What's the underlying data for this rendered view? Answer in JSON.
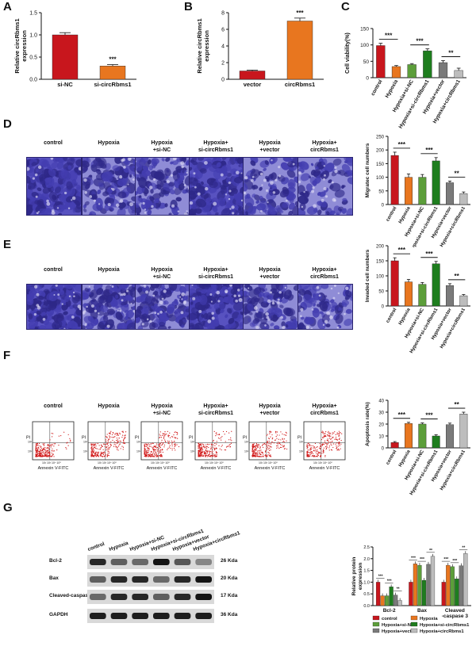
{
  "panels": {
    "A": "A",
    "B": "B",
    "C": "C",
    "D": "D",
    "E": "E",
    "F": "F",
    "G": "G"
  },
  "colors": {
    "red": "#c8161d",
    "orange": "#e8761f",
    "dgreen": "#5c9e3a",
    "green": "#1e7d1e",
    "gray": "#7a7a7a",
    "lgray": "#bdbdbd",
    "blueink": "#3e3aa8"
  },
  "group_headers": [
    "control",
    "Hypoxia",
    "Hypoxia\n+si-NC",
    "Hypoxia+\nsi-circRbms1",
    "Hypoxia\n+vector",
    "Hypoxia+\ncircRbms1"
  ],
  "flow_axes": {
    "ylabel": "PI",
    "xlabel": "Annexin V-FITC"
  },
  "blot": {
    "columns": [
      "control",
      "Hypoxia",
      "Hypoxia+si-NC",
      "Hypoxia+si-circRbms1",
      "Hypoxia+vector",
      "Hypoxia+circRbms1"
    ],
    "rows": [
      {
        "name": "Bcl-2",
        "kda": "26 Kda",
        "intensity": [
          0.85,
          0.55,
          0.5,
          0.95,
          0.6,
          0.35
        ]
      },
      {
        "name": "Bax",
        "kda": "20 Kda",
        "intensity": [
          0.55,
          0.85,
          0.85,
          0.5,
          0.85,
          0.95
        ]
      },
      {
        "name": "Cleaved-caspase 3",
        "kda": "17 Kda",
        "intensity": [
          0.5,
          0.85,
          0.85,
          0.55,
          0.85,
          0.95
        ]
      },
      {
        "name": "GAPDH",
        "kda": "36 Kda",
        "intensity": [
          0.9,
          0.9,
          0.9,
          0.9,
          0.9,
          0.9
        ]
      }
    ]
  },
  "chart_data": [
    {
      "id": "A",
      "type": "bar",
      "categories": [
        "si-NC",
        "si-circRbms1"
      ],
      "values": [
        1.0,
        0.3
      ],
      "errors": [
        0.05,
        0.03
      ],
      "ylabel": "Relative circRbms1\nexpression",
      "ylim": [
        0,
        1.5
      ],
      "yticks": [
        "0.0",
        "0.5",
        "1.0",
        "1.5"
      ],
      "colors": [
        "#c8161d",
        "#e8761f"
      ],
      "annotations": [
        {
          "text": "***",
          "over": 1
        }
      ]
    },
    {
      "id": "B",
      "type": "bar",
      "categories": [
        "vector",
        "circRbms1"
      ],
      "values": [
        1.0,
        7.0
      ],
      "errors": [
        0.1,
        0.35
      ],
      "ylabel": "Relative circRbms1\nexpression",
      "ylim": [
        0,
        8
      ],
      "yticks": [
        "0",
        "2",
        "4",
        "6",
        "8"
      ],
      "colors": [
        "#c8161d",
        "#e8761f"
      ],
      "annotations": [
        {
          "text": "***",
          "over": 1
        }
      ]
    },
    {
      "id": "C",
      "type": "bar",
      "categories": [
        "control",
        "Hypoxia",
        "Hypoxia+si-NC",
        "Hypoxia+si-circRbms1",
        "Hypoxia+vector",
        "Hypoxia+circRbms1"
      ],
      "values": [
        98,
        34,
        40,
        82,
        46,
        22
      ],
      "errors": [
        7,
        3,
        3,
        6,
        6,
        7
      ],
      "ylabel": "Cell viability(%)",
      "ylim": [
        0,
        150
      ],
      "yticks": [
        "0",
        "50",
        "100",
        "150"
      ],
      "colors": [
        "#c8161d",
        "#e8761f",
        "#5c9e3a",
        "#1e7d1e",
        "#7a7a7a",
        "#bdbdbd"
      ],
      "brackets": [
        {
          "from": 0,
          "to": 1,
          "text": "***"
        },
        {
          "from": 2,
          "to": 3,
          "text": "***"
        },
        {
          "from": 4,
          "to": 5,
          "text": "**"
        }
      ]
    },
    {
      "id": "D",
      "type": "bar",
      "categories": [
        "control",
        "Hypoxia",
        "Hypoxia+si-NC",
        "Hypoxia+si-circRbms1",
        "Hypoxia+vector",
        "Hypoxia+circRbms1"
      ],
      "values": [
        180,
        100,
        100,
        160,
        80,
        40
      ],
      "errors": [
        12,
        12,
        10,
        12,
        6,
        6
      ],
      "ylabel": "Migratec cell numbers",
      "ylim": [
        0,
        250
      ],
      "yticks": [
        "0",
        "50",
        "100",
        "150",
        "200",
        "250"
      ],
      "colors": [
        "#c8161d",
        "#e8761f",
        "#5c9e3a",
        "#1e7d1e",
        "#7a7a7a",
        "#bdbdbd"
      ],
      "brackets": [
        {
          "from": 0,
          "to": 1,
          "text": "***"
        },
        {
          "from": 2,
          "to": 3,
          "text": "***"
        },
        {
          "from": 4,
          "to": 5,
          "text": "**"
        }
      ]
    },
    {
      "id": "E",
      "type": "bar",
      "categories": [
        "control",
        "Hypoxia",
        "Hypoxia+si-NC",
        "Hypoxia+si-circRbms1",
        "Hypoxia+vector",
        "Hypoxia+circRbms1"
      ],
      "values": [
        150,
        80,
        72,
        140,
        68,
        34
      ],
      "errors": [
        10,
        8,
        6,
        8,
        6,
        4
      ],
      "ylabel": "Invaded cell numbers",
      "ylim": [
        0,
        200
      ],
      "yticks": [
        "0",
        "50",
        "100",
        "150",
        "200"
      ],
      "colors": [
        "#c8161d",
        "#e8761f",
        "#5c9e3a",
        "#1e7d1e",
        "#7a7a7a",
        "#bdbdbd"
      ],
      "brackets": [
        {
          "from": 0,
          "to": 1,
          "text": "***"
        },
        {
          "from": 2,
          "to": 3,
          "text": "***"
        },
        {
          "from": 4,
          "to": 5,
          "text": "**"
        }
      ]
    },
    {
      "id": "F",
      "type": "bar",
      "categories": [
        "control",
        "Hypoxia",
        "Hypoxia+si-NC",
        "Hypoxia+si-circRbms1",
        "Hypoxia+vector",
        "Hypoxia+circRbms1"
      ],
      "values": [
        4.5,
        20.5,
        20,
        10,
        19.5,
        28.5
      ],
      "errors": [
        0.8,
        1,
        1,
        1,
        1.3,
        1.5
      ],
      "ylabel": "Apoptosis rate(%)",
      "ylim": [
        0,
        40
      ],
      "yticks": [
        "0",
        "10",
        "20",
        "30",
        "40"
      ],
      "colors": [
        "#c8161d",
        "#e8761f",
        "#5c9e3a",
        "#1e7d1e",
        "#7a7a7a",
        "#bdbdbd"
      ],
      "brackets": [
        {
          "from": 0,
          "to": 1,
          "text": "***"
        },
        {
          "from": 2,
          "to": 3,
          "text": "***"
        },
        {
          "from": 4,
          "to": 5,
          "text": "**"
        }
      ]
    },
    {
      "id": "G",
      "type": "bar",
      "categories": [
        "Bcl-2",
        "Bax",
        "Cleaved\n-caspase 3"
      ],
      "series": [
        {
          "name": "control",
          "values": [
            1.0,
            1.0,
            1.0
          ],
          "color": "#c8161d"
        },
        {
          "name": "Hypoxia",
          "values": [
            0.42,
            1.78,
            1.72
          ],
          "color": "#e8761f"
        },
        {
          "name": "Hypoxia+si-NC",
          "values": [
            0.42,
            1.72,
            1.66
          ],
          "color": "#5c9e3a"
        },
        {
          "name": "Hypoxia+si-circRbms1",
          "values": [
            0.8,
            1.08,
            1.14
          ],
          "color": "#1e7d1e"
        },
        {
          "name": "Hypoxia+vector",
          "values": [
            0.45,
            1.76,
            1.7
          ],
          "color": "#7a7a7a"
        },
        {
          "name": "Hypoxia+circRbms1",
          "values": [
            0.22,
            2.1,
            2.22
          ],
          "color": "#bdbdbd"
        }
      ],
      "ylabel": "Relative protein\nexpression",
      "ylim": [
        0,
        2.5
      ],
      "yticks": [
        "0.0",
        "0.5",
        "1.0",
        "1.5",
        "2.0",
        "2.5"
      ],
      "stars": [
        [
          "***",
          "***",
          "**"
        ],
        [
          "***",
          "***",
          "**"
        ],
        [
          "***",
          "***",
          "**"
        ]
      ]
    }
  ]
}
